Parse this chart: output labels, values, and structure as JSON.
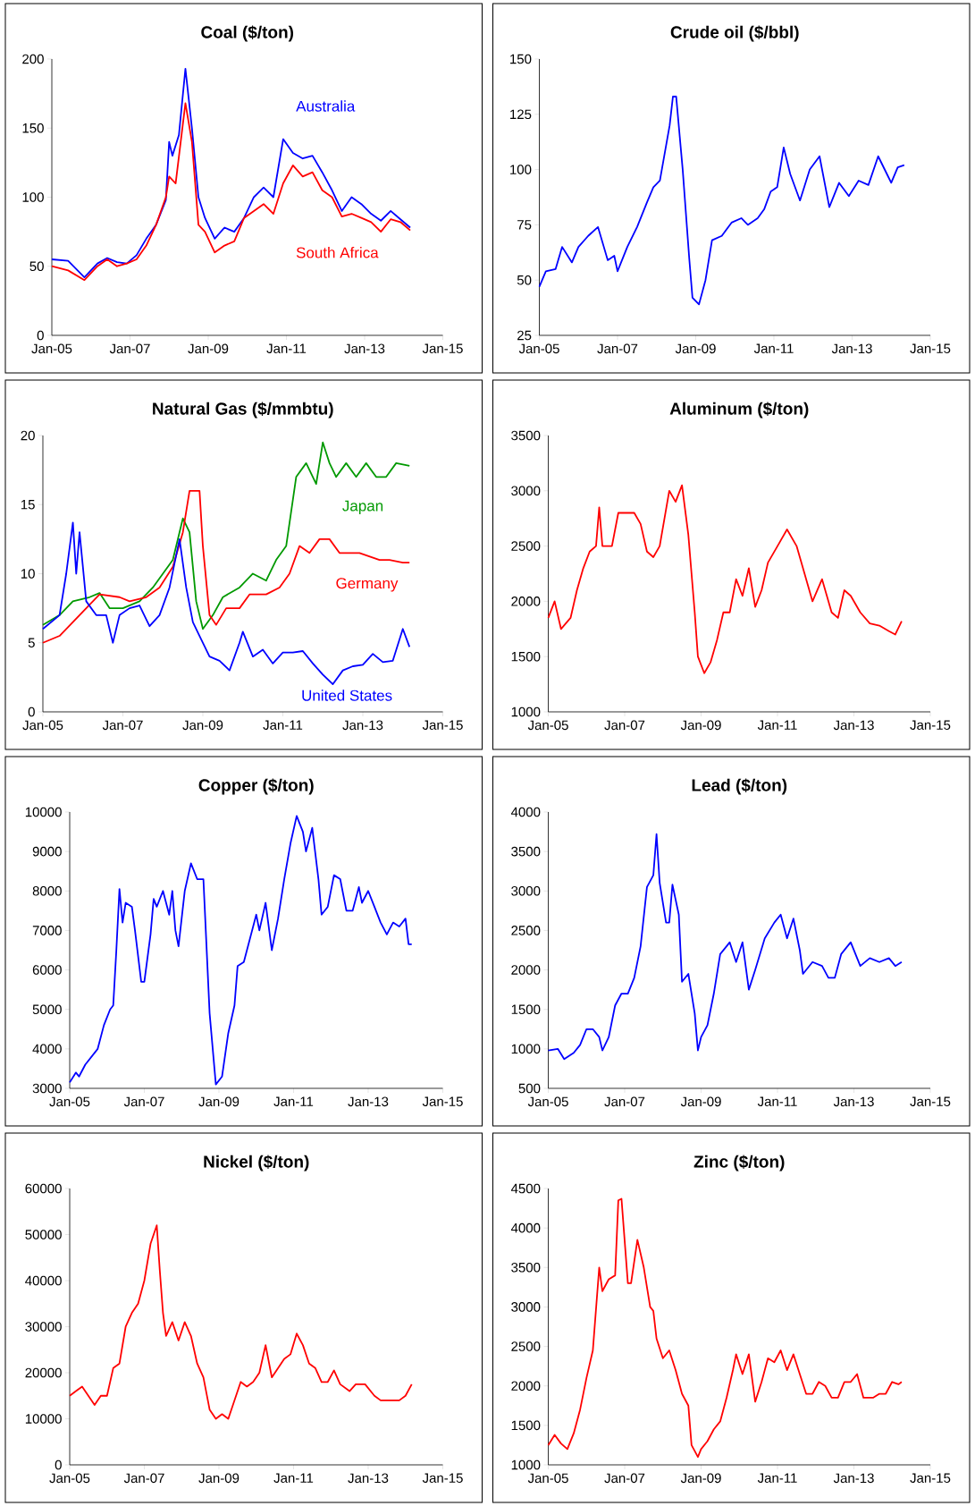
{
  "chart_data": [
    {
      "type": "line",
      "title": "Coal ($/ton)",
      "xlim": [
        "2005-01",
        "2015-01"
      ],
      "ylim": [
        0,
        200
      ],
      "yticks": [
        0,
        50,
        100,
        150,
        200
      ],
      "xticks": [
        {
          "value": "2005-01",
          "label": "Jan-05"
        },
        {
          "value": "2007-01",
          "label": "Jan-07"
        },
        {
          "value": "2009-01",
          "label": "Jan-09"
        },
        {
          "value": "2011-01",
          "label": "Jan-11"
        },
        {
          "value": "2013-01",
          "label": "Jan-13"
        },
        {
          "value": "2015-01",
          "label": "Jan-15"
        }
      ],
      "series": [
        {
          "name": "Australia",
          "color": "#0000ff",
          "x": [
            "2005-01",
            "2005-06",
            "2005-11",
            "2006-03",
            "2006-06",
            "2006-09",
            "2006-12",
            "2007-03",
            "2007-06",
            "2007-09",
            "2007-12",
            "2008-01",
            "2008-02",
            "2008-04",
            "2008-06",
            "2008-08",
            "2008-10",
            "2008-12",
            "2009-03",
            "2009-06",
            "2009-09",
            "2009-12",
            "2010-03",
            "2010-06",
            "2010-09",
            "2010-12",
            "2011-03",
            "2011-06",
            "2011-09",
            "2011-12",
            "2012-03",
            "2012-06",
            "2012-09",
            "2012-12",
            "2013-03",
            "2013-06",
            "2013-09",
            "2013-12",
            "2014-03"
          ],
          "values": [
            55,
            54,
            42,
            52,
            56,
            53,
            52,
            58,
            70,
            80,
            98,
            140,
            130,
            145,
            193,
            150,
            100,
            85,
            70,
            78,
            75,
            85,
            100,
            107,
            100,
            142,
            132,
            128,
            130,
            118,
            105,
            90,
            100,
            95,
            88,
            83,
            90,
            84,
            78
          ]
        },
        {
          "name": "South Africa",
          "color": "#ff0000",
          "x": [
            "2005-01",
            "2005-06",
            "2005-11",
            "2006-03",
            "2006-06",
            "2006-09",
            "2006-12",
            "2007-03",
            "2007-06",
            "2007-09",
            "2007-12",
            "2008-01",
            "2008-03",
            "2008-06",
            "2008-08",
            "2008-10",
            "2008-12",
            "2009-03",
            "2009-06",
            "2009-09",
            "2009-12",
            "2010-03",
            "2010-06",
            "2010-09",
            "2010-12",
            "2011-03",
            "2011-06",
            "2011-09",
            "2011-12",
            "2012-03",
            "2012-06",
            "2012-09",
            "2012-12",
            "2013-03",
            "2013-06",
            "2013-09",
            "2013-12",
            "2014-03"
          ],
          "values": [
            50,
            47,
            40,
            50,
            55,
            50,
            52,
            55,
            65,
            80,
            100,
            115,
            110,
            168,
            140,
            80,
            75,
            60,
            65,
            68,
            85,
            90,
            95,
            88,
            110,
            123,
            115,
            118,
            105,
            100,
            86,
            88,
            85,
            82,
            75,
            84,
            82,
            76
          ]
        }
      ]
    },
    {
      "type": "line",
      "title": "Crude oil ($/bbl)",
      "xlim": [
        "2005-01",
        "2015-01"
      ],
      "ylim": [
        25,
        150
      ],
      "yticks": [
        25,
        50,
        75,
        100,
        125,
        150
      ],
      "xticks": [
        {
          "value": "2005-01",
          "label": "Jan-05"
        },
        {
          "value": "2007-01",
          "label": "Jan-07"
        },
        {
          "value": "2009-01",
          "label": "Jan-09"
        },
        {
          "value": "2011-01",
          "label": "Jan-11"
        },
        {
          "value": "2013-01",
          "label": "Jan-13"
        },
        {
          "value": "2015-01",
          "label": "Jan-15"
        }
      ],
      "series": [
        {
          "color": "#0000ff",
          "x": [
            "2005-01",
            "2005-03",
            "2005-06",
            "2005-08",
            "2005-11",
            "2006-01",
            "2006-04",
            "2006-07",
            "2006-10",
            "2006-12",
            "2007-01",
            "2007-04",
            "2007-07",
            "2007-10",
            "2007-12",
            "2008-02",
            "2008-05",
            "2008-06",
            "2008-07",
            "2008-09",
            "2008-11",
            "2008-12",
            "2009-02",
            "2009-04",
            "2009-06",
            "2009-09",
            "2009-12",
            "2010-03",
            "2010-05",
            "2010-08",
            "2010-10",
            "2010-12",
            "2011-02",
            "2011-04",
            "2011-06",
            "2011-09",
            "2011-12",
            "2012-03",
            "2012-06",
            "2012-09",
            "2012-12",
            "2013-03",
            "2013-06",
            "2013-09",
            "2013-12",
            "2014-01",
            "2014-03",
            "2014-05"
          ],
          "values": [
            47,
            54,
            55,
            65,
            58,
            65,
            70,
            74,
            59,
            61,
            54,
            65,
            74,
            85,
            92,
            95,
            120,
            133,
            133,
            100,
            60,
            42,
            39,
            50,
            68,
            70,
            76,
            78,
            75,
            78,
            82,
            90,
            92,
            110,
            98,
            86,
            100,
            106,
            83,
            94,
            88,
            95,
            93,
            106,
            97,
            94,
            101,
            102
          ]
        }
      ]
    },
    {
      "type": "line",
      "title": "Natural Gas ($/mmbtu)",
      "xlim": [
        "2005-01",
        "2015-01"
      ],
      "ylim": [
        0,
        20
      ],
      "yticks": [
        0,
        5,
        10,
        15,
        20
      ],
      "xticks": [
        {
          "value": "2005-01",
          "label": "Jan-05"
        },
        {
          "value": "2007-01",
          "label": "Jan-07"
        },
        {
          "value": "2009-01",
          "label": "Jan-09"
        },
        {
          "value": "2011-01",
          "label": "Jan-11"
        },
        {
          "value": "2013-01",
          "label": "Jan-13"
        },
        {
          "value": "2015-01",
          "label": "Jan-15"
        }
      ],
      "series": [
        {
          "name": "Japan",
          "color": "#009900",
          "x": [
            "2005-01",
            "2005-06",
            "2005-10",
            "2006-03",
            "2006-06",
            "2006-09",
            "2007-01",
            "2007-06",
            "2007-10",
            "2008-01",
            "2008-04",
            "2008-07",
            "2008-09",
            "2008-11",
            "2009-01",
            "2009-04",
            "2009-07",
            "2009-12",
            "2010-04",
            "2010-08",
            "2010-11",
            "2011-02",
            "2011-05",
            "2011-08",
            "2011-11",
            "2012-01",
            "2012-03",
            "2012-05",
            "2012-08",
            "2012-11",
            "2013-02",
            "2013-05",
            "2013-08",
            "2013-11",
            "2014-03"
          ],
          "values": [
            6.3,
            7,
            8,
            8.3,
            8.6,
            7.5,
            7.5,
            8,
            9,
            10,
            11,
            14,
            13,
            8,
            6,
            7,
            8.3,
            9,
            10,
            9.5,
            11,
            12,
            17,
            18,
            16.5,
            19.5,
            18,
            17,
            18,
            17,
            18,
            17,
            17,
            18,
            17.8
          ]
        },
        {
          "name": "Germany",
          "color": "#ff0000",
          "x": [
            "2005-01",
            "2005-06",
            "2005-12",
            "2006-06",
            "2006-12",
            "2007-03",
            "2007-08",
            "2007-12",
            "2008-04",
            "2008-07",
            "2008-09",
            "2008-12",
            "2009-01",
            "2009-03",
            "2009-05",
            "2009-08",
            "2009-12",
            "2010-03",
            "2010-08",
            "2010-12",
            "2011-03",
            "2011-06",
            "2011-09",
            "2011-12",
            "2012-03",
            "2012-06",
            "2012-09",
            "2012-12",
            "2013-06",
            "2013-09",
            "2014-01",
            "2014-03"
          ],
          "values": [
            5,
            5.5,
            7,
            8.5,
            8.3,
            8,
            8.3,
            9,
            10.5,
            13,
            16,
            16,
            12,
            7,
            6.3,
            7.5,
            7.5,
            8.5,
            8.5,
            9,
            10,
            12,
            11.5,
            12.5,
            12.5,
            11.5,
            11.5,
            11.5,
            11,
            11,
            10.8,
            10.8
          ]
        },
        {
          "name": "United States",
          "color": "#0000ff",
          "x": [
            "2005-01",
            "2005-06",
            "2005-08",
            "2005-10",
            "2005-11",
            "2005-12",
            "2006-02",
            "2006-05",
            "2006-08",
            "2006-10",
            "2006-12",
            "2007-03",
            "2007-06",
            "2007-09",
            "2007-12",
            "2008-03",
            "2008-06",
            "2008-08",
            "2008-10",
            "2008-12",
            "2009-03",
            "2009-06",
            "2009-09",
            "2009-12",
            "2010-01",
            "2010-04",
            "2010-07",
            "2010-10",
            "2011-01",
            "2011-04",
            "2011-07",
            "2011-10",
            "2012-01",
            "2012-04",
            "2012-07",
            "2012-10",
            "2013-01",
            "2013-04",
            "2013-07",
            "2013-10",
            "2014-01",
            "2014-03"
          ],
          "values": [
            6,
            7,
            10,
            13.7,
            10,
            13,
            8,
            7,
            7,
            5,
            7,
            7.5,
            7.7,
            6.2,
            7,
            9,
            12.5,
            9,
            6.5,
            5.5,
            4,
            3.7,
            3,
            5,
            5.8,
            4,
            4.5,
            3.5,
            4.3,
            4.3,
            4.4,
            3.5,
            2.7,
            2,
            3,
            3.3,
            3.4,
            4.2,
            3.6,
            3.7,
            6,
            4.7
          ]
        }
      ]
    },
    {
      "type": "line",
      "title": "Aluminum ($/ton)",
      "xlim": [
        "2005-01",
        "2015-01"
      ],
      "ylim": [
        1000,
        3500
      ],
      "yticks": [
        1000,
        1500,
        2000,
        2500,
        3000,
        3500
      ],
      "xticks": [
        {
          "value": "2005-01",
          "label": "Jan-05"
        },
        {
          "value": "2007-01",
          "label": "Jan-07"
        },
        {
          "value": "2009-01",
          "label": "Jan-09"
        },
        {
          "value": "2011-01",
          "label": "Jan-11"
        },
        {
          "value": "2013-01",
          "label": "Jan-13"
        },
        {
          "value": "2015-01",
          "label": "Jan-15"
        }
      ],
      "series": [
        {
          "color": "#ff0000",
          "x": [
            "2005-01",
            "2005-03",
            "2005-05",
            "2005-08",
            "2005-10",
            "2005-12",
            "2006-02",
            "2006-04",
            "2006-05",
            "2006-06",
            "2006-09",
            "2006-11",
            "2007-02",
            "2007-04",
            "2007-06",
            "2007-08",
            "2007-10",
            "2007-12",
            "2008-03",
            "2008-05",
            "2008-07",
            "2008-09",
            "2008-11",
            "2008-12",
            "2009-02",
            "2009-04",
            "2009-06",
            "2009-08",
            "2009-10",
            "2009-12",
            "2010-02",
            "2010-04",
            "2010-06",
            "2010-08",
            "2010-10",
            "2011-01",
            "2011-04",
            "2011-07",
            "2011-09",
            "2011-12",
            "2012-03",
            "2012-06",
            "2012-08",
            "2012-10",
            "2012-12",
            "2013-03",
            "2013-06",
            "2013-09",
            "2013-12",
            "2014-02",
            "2014-04"
          ],
          "values": [
            1850,
            2000,
            1750,
            1850,
            2100,
            2300,
            2450,
            2500,
            2850,
            2500,
            2500,
            2800,
            2800,
            2800,
            2700,
            2450,
            2400,
            2500,
            3000,
            2900,
            3050,
            2600,
            1900,
            1500,
            1350,
            1450,
            1650,
            1900,
            1900,
            2200,
            2050,
            2300,
            1950,
            2100,
            2350,
            2500,
            2650,
            2500,
            2300,
            2000,
            2200,
            1900,
            1850,
            2100,
            2050,
            1900,
            1800,
            1780,
            1730,
            1700,
            1820
          ]
        }
      ]
    },
    {
      "type": "line",
      "title": "Copper ($/ton)",
      "xlim": [
        "2005-01",
        "2015-01"
      ],
      "ylim": [
        3000,
        10000
      ],
      "yticks": [
        3000,
        4000,
        5000,
        6000,
        7000,
        8000,
        9000,
        10000
      ],
      "xticks": [
        {
          "value": "2005-01",
          "label": "Jan-05"
        },
        {
          "value": "2007-01",
          "label": "Jan-07"
        },
        {
          "value": "2009-01",
          "label": "Jan-09"
        },
        {
          "value": "2011-01",
          "label": "Jan-11"
        },
        {
          "value": "2013-01",
          "label": "Jan-13"
        },
        {
          "value": "2015-01",
          "label": "Jan-15"
        }
      ],
      "series": [
        {
          "color": "#0000ff",
          "x": [
            "2005-01",
            "2005-03",
            "2005-04",
            "2005-06",
            "2005-08",
            "2005-10",
            "2005-12",
            "2006-02",
            "2006-03",
            "2006-04",
            "2006-05",
            "2006-06",
            "2006-07",
            "2006-09",
            "2006-10",
            "2006-12",
            "2007-01",
            "2007-03",
            "2007-04",
            "2007-05",
            "2007-07",
            "2007-09",
            "2007-10",
            "2007-11",
            "2007-12",
            "2008-02",
            "2008-04",
            "2008-06",
            "2008-08",
            "2008-10",
            "2008-12",
            "2009-02",
            "2009-04",
            "2009-06",
            "2009-07",
            "2009-09",
            "2009-11",
            "2010-01",
            "2010-02",
            "2010-04",
            "2010-06",
            "2010-08",
            "2010-10",
            "2010-12",
            "2011-02",
            "2011-04",
            "2011-05",
            "2011-07",
            "2011-09",
            "2011-10",
            "2011-12",
            "2012-02",
            "2012-04",
            "2012-06",
            "2012-08",
            "2012-10",
            "2012-11",
            "2013-01",
            "2013-03",
            "2013-05",
            "2013-07",
            "2013-09",
            "2013-11",
            "2014-01",
            "2014-02",
            "2014-03"
          ],
          "values": [
            3150,
            3400,
            3300,
            3600,
            3800,
            4000,
            4600,
            5000,
            5100,
            6500,
            8050,
            7200,
            7700,
            7600,
            7000,
            5700,
            5700,
            6900,
            7800,
            7600,
            8000,
            7400,
            8000,
            7000,
            6600,
            8000,
            8700,
            8300,
            8300,
            4900,
            3100,
            3300,
            4400,
            5100,
            6100,
            6200,
            6800,
            7400,
            7000,
            7700,
            6500,
            7300,
            8300,
            9200,
            9900,
            9500,
            9000,
            9600,
            8300,
            7400,
            7600,
            8400,
            8300,
            7500,
            7500,
            8100,
            7700,
            8000,
            7600,
            7200,
            6900,
            7200,
            7100,
            7300,
            6650,
            6650
          ]
        }
      ]
    },
    {
      "type": "line",
      "title": "Lead ($/ton)",
      "xlim": [
        "2005-01",
        "2015-01"
      ],
      "ylim": [
        500,
        4000
      ],
      "yticks": [
        500,
        1000,
        1500,
        2000,
        2500,
        3000,
        3500,
        4000
      ],
      "xticks": [
        {
          "value": "2005-01",
          "label": "Jan-05"
        },
        {
          "value": "2007-01",
          "label": "Jan-07"
        },
        {
          "value": "2009-01",
          "label": "Jan-09"
        },
        {
          "value": "2011-01",
          "label": "Jan-11"
        },
        {
          "value": "2013-01",
          "label": "Jan-13"
        },
        {
          "value": "2015-01",
          "label": "Jan-15"
        }
      ],
      "series": [
        {
          "color": "#0000ff",
          "x": [
            "2005-01",
            "2005-04",
            "2005-06",
            "2005-09",
            "2005-11",
            "2006-01",
            "2006-03",
            "2006-05",
            "2006-06",
            "2006-08",
            "2006-10",
            "2006-12",
            "2007-02",
            "2007-04",
            "2007-06",
            "2007-08",
            "2007-10",
            "2007-11",
            "2007-12",
            "2008-02",
            "2008-03",
            "2008-04",
            "2008-06",
            "2008-07",
            "2008-09",
            "2008-11",
            "2008-12",
            "2009-01",
            "2009-03",
            "2009-05",
            "2009-07",
            "2009-09",
            "2009-10",
            "2009-12",
            "2010-02",
            "2010-04",
            "2010-06",
            "2010-09",
            "2010-12",
            "2011-02",
            "2011-04",
            "2011-06",
            "2011-08",
            "2011-09",
            "2011-12",
            "2012-03",
            "2012-05",
            "2012-07",
            "2012-09",
            "2012-12",
            "2013-03",
            "2013-06",
            "2013-09",
            "2013-12",
            "2014-02",
            "2014-04"
          ],
          "values": [
            980,
            1000,
            870,
            950,
            1050,
            1250,
            1250,
            1150,
            980,
            1150,
            1550,
            1700,
            1700,
            1900,
            2300,
            3050,
            3200,
            3720,
            3100,
            2600,
            2600,
            3080,
            2700,
            1850,
            1950,
            1450,
            980,
            1150,
            1300,
            1700,
            2200,
            2300,
            2350,
            2100,
            2350,
            1750,
            2000,
            2400,
            2600,
            2700,
            2400,
            2650,
            2250,
            1950,
            2100,
            2050,
            1900,
            1900,
            2200,
            2350,
            2050,
            2150,
            2100,
            2150,
            2050,
            2100
          ]
        }
      ]
    },
    {
      "type": "line",
      "title": "Nickel ($/ton)",
      "xlim": [
        "2005-01",
        "2015-01"
      ],
      "ylim": [
        0,
        60000
      ],
      "yticks": [
        0,
        10000,
        20000,
        30000,
        40000,
        50000,
        60000
      ],
      "xticks": [
        {
          "value": "2005-01",
          "label": "Jan-05"
        },
        {
          "value": "2007-01",
          "label": "Jan-07"
        },
        {
          "value": "2009-01",
          "label": "Jan-09"
        },
        {
          "value": "2011-01",
          "label": "Jan-11"
        },
        {
          "value": "2013-01",
          "label": "Jan-13"
        },
        {
          "value": "2015-01",
          "label": "Jan-15"
        }
      ],
      "series": [
        {
          "color": "#ff0000",
          "x": [
            "2005-01",
            "2005-03",
            "2005-05",
            "2005-07",
            "2005-09",
            "2005-11",
            "2006-01",
            "2006-03",
            "2006-05",
            "2006-07",
            "2006-09",
            "2006-11",
            "2007-01",
            "2007-03",
            "2007-05",
            "2007-06",
            "2007-07",
            "2007-08",
            "2007-10",
            "2007-12",
            "2008-02",
            "2008-04",
            "2008-06",
            "2008-08",
            "2008-10",
            "2008-12",
            "2009-02",
            "2009-04",
            "2009-06",
            "2009-08",
            "2009-10",
            "2009-12",
            "2010-02",
            "2010-04",
            "2010-06",
            "2010-08",
            "2010-10",
            "2010-12",
            "2011-02",
            "2011-04",
            "2011-06",
            "2011-08",
            "2011-10",
            "2011-12",
            "2012-02",
            "2012-04",
            "2012-07",
            "2012-09",
            "2012-12",
            "2013-03",
            "2013-05",
            "2013-08",
            "2013-11",
            "2014-01",
            "2014-03"
          ],
          "values": [
            15000,
            16000,
            17000,
            15000,
            13000,
            15000,
            15000,
            21000,
            22000,
            30000,
            33000,
            35000,
            40000,
            48000,
            52000,
            42000,
            33000,
            28000,
            31000,
            27000,
            31000,
            28000,
            22000,
            19000,
            12000,
            10000,
            11000,
            10000,
            14000,
            18000,
            17000,
            18000,
            20000,
            26000,
            19000,
            21000,
            23000,
            24000,
            28500,
            26000,
            22000,
            21000,
            18000,
            18000,
            20500,
            17500,
            16000,
            17500,
            17500,
            15000,
            14000,
            14000,
            14000,
            15000,
            17500
          ]
        }
      ]
    },
    {
      "type": "line",
      "title": "Zinc ($/ton)",
      "xlim": [
        "2005-01",
        "2015-01"
      ],
      "ylim": [
        1000,
        4500
      ],
      "yticks": [
        1000,
        1500,
        2000,
        2500,
        3000,
        3500,
        4000,
        4500
      ],
      "xticks": [
        {
          "value": "2005-01",
          "label": "Jan-05"
        },
        {
          "value": "2007-01",
          "label": "Jan-07"
        },
        {
          "value": "2009-01",
          "label": "Jan-09"
        },
        {
          "value": "2011-01",
          "label": "Jan-11"
        },
        {
          "value": "2013-01",
          "label": "Jan-13"
        },
        {
          "value": "2015-01",
          "label": "Jan-15"
        }
      ],
      "series": [
        {
          "color": "#ff0000",
          "x": [
            "2005-01",
            "2005-03",
            "2005-05",
            "2005-07",
            "2005-09",
            "2005-11",
            "2006-01",
            "2006-03",
            "2006-05",
            "2006-06",
            "2006-08",
            "2006-10",
            "2006-11",
            "2006-12",
            "2007-02",
            "2007-03",
            "2007-05",
            "2007-07",
            "2007-09",
            "2007-10",
            "2007-11",
            "2008-01",
            "2008-03",
            "2008-05",
            "2008-07",
            "2008-09",
            "2008-10",
            "2008-12",
            "2009-01",
            "2009-03",
            "2009-05",
            "2009-07",
            "2009-09",
            "2009-11",
            "2009-12",
            "2010-02",
            "2010-04",
            "2010-06",
            "2010-08",
            "2010-10",
            "2010-12",
            "2011-02",
            "2011-04",
            "2011-06",
            "2011-08",
            "2011-10",
            "2011-12",
            "2012-02",
            "2012-04",
            "2012-06",
            "2012-08",
            "2012-10",
            "2012-12",
            "2013-02",
            "2013-04",
            "2013-07",
            "2013-09",
            "2013-11",
            "2014-01",
            "2014-03",
            "2014-04"
          ],
          "values": [
            1250,
            1380,
            1270,
            1200,
            1400,
            1700,
            2100,
            2450,
            3500,
            3200,
            3350,
            3400,
            4350,
            4370,
            3300,
            3300,
            3850,
            3500,
            3000,
            2950,
            2600,
            2350,
            2450,
            2200,
            1900,
            1750,
            1250,
            1100,
            1200,
            1300,
            1450,
            1550,
            1850,
            2200,
            2400,
            2150,
            2400,
            1800,
            2050,
            2350,
            2300,
            2450,
            2200,
            2400,
            2150,
            1900,
            1900,
            2050,
            2000,
            1850,
            1850,
            2050,
            2050,
            2150,
            1850,
            1850,
            1900,
            1900,
            2050,
            2020,
            2050
          ]
        }
      ]
    }
  ]
}
